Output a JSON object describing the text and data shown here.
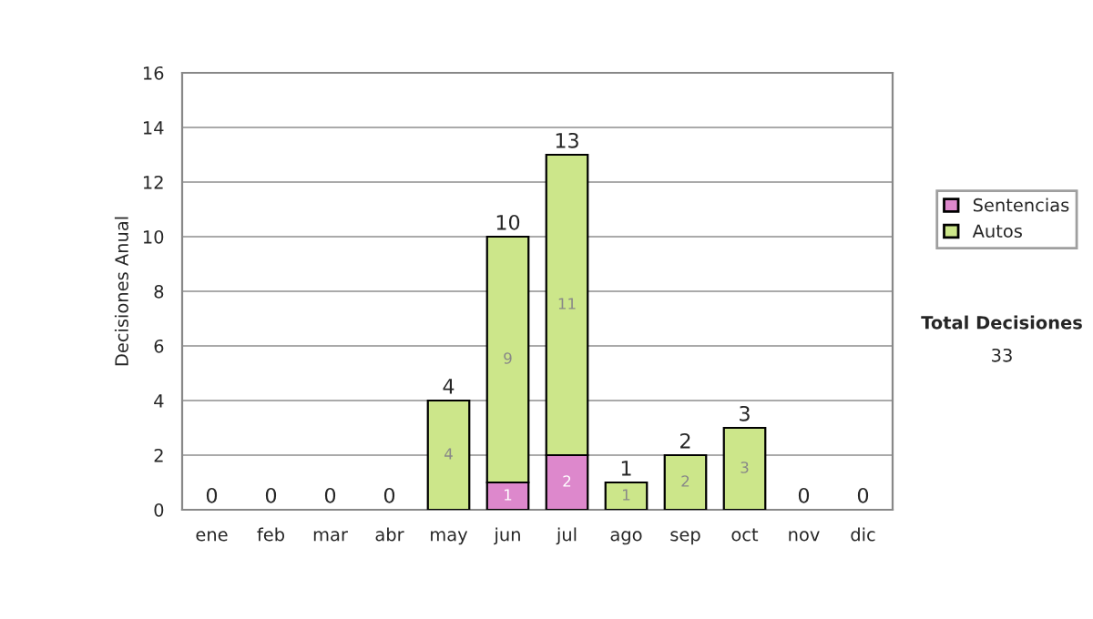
{
  "chart_data": {
    "type": "bar",
    "stacked": true,
    "ylabel": "Decisiones Anual",
    "categories": [
      "ene",
      "feb",
      "mar",
      "abr",
      "may",
      "jun",
      "jul",
      "ago",
      "sep",
      "oct",
      "nov",
      "dic"
    ],
    "series": [
      {
        "name": "Sentencias",
        "color": "#dd88cc",
        "values": [
          0,
          0,
          0,
          0,
          0,
          1,
          2,
          0,
          0,
          0,
          0,
          0
        ],
        "value_labels": [
          null,
          null,
          null,
          null,
          null,
          "1",
          "2",
          null,
          null,
          null,
          null,
          null
        ]
      },
      {
        "name": "Autos",
        "color": "#cce68a",
        "values": [
          0,
          0,
          0,
          0,
          4,
          9,
          11,
          1,
          2,
          3,
          0,
          0
        ],
        "value_labels": [
          null,
          null,
          null,
          null,
          "4",
          "9",
          "11",
          "1",
          "2",
          "3",
          null,
          null
        ]
      }
    ],
    "totals": [
      "0",
      "0",
      "0",
      "0",
      "4",
      "10",
      "13",
      "1",
      "2",
      "3",
      "0",
      "0"
    ],
    "ylim": [
      0,
      16
    ],
    "yticks": [
      0,
      2,
      4,
      6,
      8,
      10,
      12,
      14,
      16
    ],
    "grid": "y",
    "legend": "right",
    "annotations": [
      "Total Decisiones",
      "33"
    ]
  }
}
